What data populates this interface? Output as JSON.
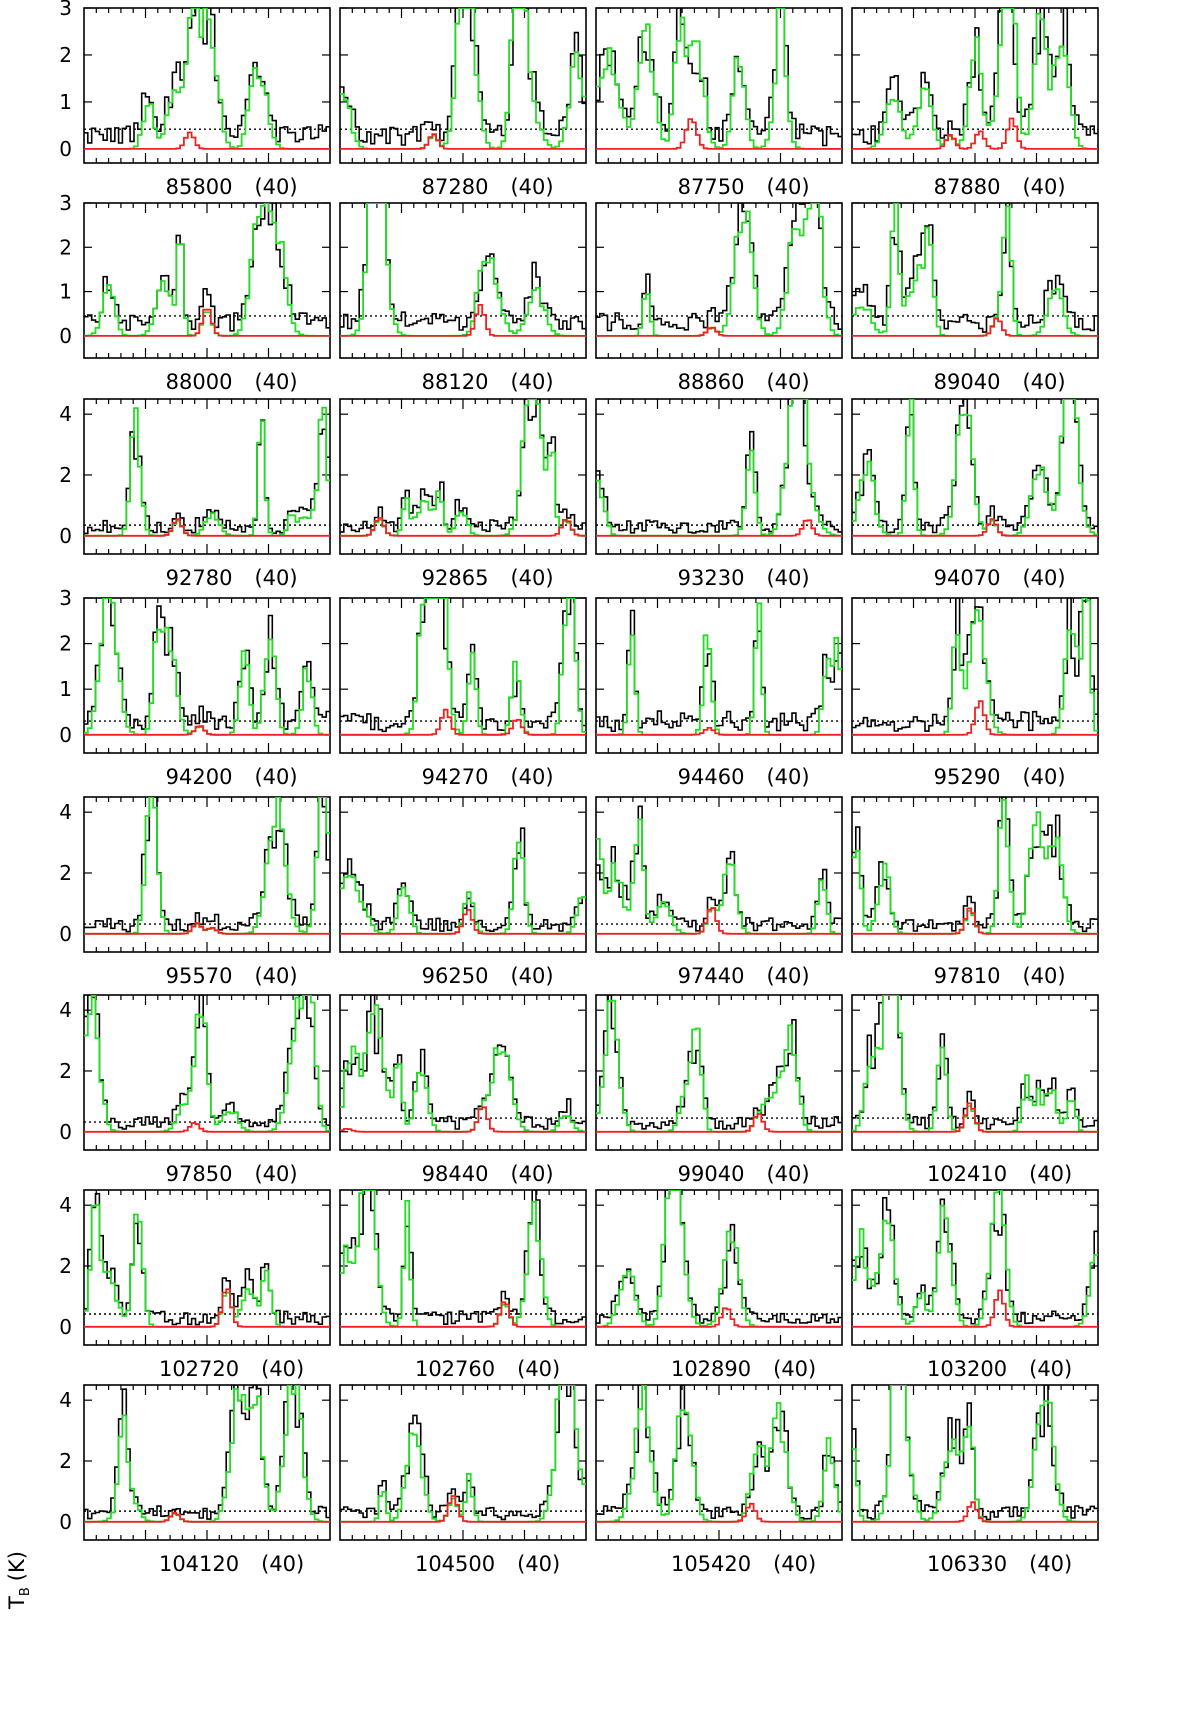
{
  "chart_data": {
    "type": "line",
    "y_axis_label": "T",
    "y_axis_label_subscript": "B",
    "y_axis_unit": "(K)",
    "colors": {
      "observed": "#000000",
      "model_all": "#22dd22",
      "model_molecule": "#ee2222",
      "threshold": "#000000"
    },
    "rows": [
      {
        "ylim": [
          -0.3,
          3.0
        ],
        "yticks": [
          "0",
          "1",
          "2",
          "3"
        ],
        "panels": [
          {
            "freq": "85800",
            "width": "(40)",
            "threshold": 0.42,
            "peaks": [
              {
                "x": 0.43,
                "h": 0.35
              }
            ]
          },
          {
            "freq": "87280",
            "width": "(40)",
            "threshold": 0.42,
            "peaks": [
              {
                "x": 0.38,
                "h": 0.32
              }
            ]
          },
          {
            "freq": "87750",
            "width": "(40)",
            "threshold": 0.42,
            "peaks": [
              {
                "x": 0.4,
                "h": 0.3
              },
              {
                "x": 0.38,
                "h": 0.45
              }
            ]
          },
          {
            "freq": "87880",
            "width": "(40)",
            "threshold": 0.42,
            "peaks": [
              {
                "x": 0.52,
                "h": 0.38
              },
              {
                "x": 0.4,
                "h": 0.3
              },
              {
                "x": 0.65,
                "h": 0.65
              }
            ]
          }
        ]
      },
      {
        "ylim": [
          -0.5,
          3.0
        ],
        "yticks": [
          "0",
          "1",
          "2",
          "3"
        ],
        "panels": [
          {
            "freq": "88000",
            "width": "(40)",
            "threshold": 0.45,
            "peaks": [
              {
                "x": 0.5,
                "h": 0.65
              }
            ]
          },
          {
            "freq": "88120",
            "width": "(40)",
            "threshold": 0.45,
            "peaks": [
              {
                "x": 0.57,
                "h": 0.7
              }
            ]
          },
          {
            "freq": "88860",
            "width": "(40)",
            "threshold": 0.45,
            "peaks": [
              {
                "x": 0.47,
                "h": 0.2
              }
            ]
          },
          {
            "freq": "89040",
            "width": "(40)",
            "threshold": 0.45,
            "peaks": [
              {
                "x": 0.59,
                "h": 0.4
              }
            ]
          }
        ]
      },
      {
        "ylim": [
          -0.6,
          4.5
        ],
        "yticks": [
          "0",
          "2",
          "4"
        ],
        "panels": [
          {
            "freq": "92780",
            "width": "(40)",
            "threshold": 0.35,
            "peaks": [
              {
                "x": 0.38,
                "h": 0.55
              }
            ]
          },
          {
            "freq": "92865",
            "width": "(40)",
            "threshold": 0.35,
            "peaks": [
              {
                "x": 0.16,
                "h": 0.6
              },
              {
                "x": 0.92,
                "h": 0.55
              }
            ]
          },
          {
            "freq": "93230",
            "width": "(40)",
            "threshold": 0.35,
            "peaks": [
              {
                "x": 0.86,
                "h": 0.55
              }
            ]
          },
          {
            "freq": "94070",
            "width": "(40)",
            "threshold": 0.35,
            "peaks": [
              {
                "x": 0.57,
                "h": 0.55
              }
            ]
          }
        ]
      },
      {
        "ylim": [
          -0.4,
          3.0
        ],
        "yticks": [
          "0",
          "1",
          "2",
          "3"
        ],
        "panels": [
          {
            "freq": "94200",
            "width": "(40)",
            "threshold": 0.3,
            "peaks": [
              {
                "x": 0.47,
                "h": 0.2
              }
            ]
          },
          {
            "freq": "94270",
            "width": "(40)",
            "threshold": 0.3,
            "peaks": [
              {
                "x": 0.43,
                "h": 0.55
              },
              {
                "x": 0.72,
                "h": 0.35
              }
            ]
          },
          {
            "freq": "94460",
            "width": "(40)",
            "threshold": 0.3,
            "peaks": [
              {
                "x": 0.46,
                "h": 0.15
              }
            ]
          },
          {
            "freq": "95290",
            "width": "(40)",
            "threshold": 0.3,
            "peaks": [
              {
                "x": 0.52,
                "h": 0.75
              }
            ]
          }
        ]
      },
      {
        "ylim": [
          -0.6,
          4.5
        ],
        "yticks": [
          "0",
          "2",
          "4"
        ],
        "panels": [
          {
            "freq": "95570",
            "width": "(40)",
            "threshold": 0.32,
            "peaks": [
              {
                "x": 0.46,
                "h": 0.35
              },
              {
                "x": 0.52,
                "h": 0.2
              }
            ]
          },
          {
            "freq": "96250",
            "width": "(40)",
            "threshold": 0.32,
            "peaks": [
              {
                "x": 0.52,
                "h": 0.8
              }
            ]
          },
          {
            "freq": "97440",
            "width": "(40)",
            "threshold": 0.32,
            "peaks": [
              {
                "x": 0.47,
                "h": 0.9
              }
            ]
          },
          {
            "freq": "97810",
            "width": "(40)",
            "threshold": 0.32,
            "peaks": [
              {
                "x": 0.48,
                "h": 0.85
              }
            ]
          }
        ]
      },
      {
        "ylim": [
          -0.6,
          4.5
        ],
        "yticks": [
          "0",
          "2",
          "4"
        ],
        "panels": [
          {
            "freq": "97850",
            "width": "(40)",
            "threshold": 0.32,
            "peaks": [
              {
                "x": 0.45,
                "h": 0.3
              }
            ]
          },
          {
            "freq": "98440",
            "width": "(40)",
            "threshold": 0.45,
            "peaks": [
              {
                "x": 0.58,
                "h": 0.85
              },
              {
                "x": 0.03,
                "h": 0.1
              }
            ]
          },
          {
            "freq": "99040",
            "width": "(40)",
            "threshold": 0.45,
            "peaks": [
              {
                "x": 0.66,
                "h": 0.6
              }
            ]
          },
          {
            "freq": "102410",
            "width": "(40)",
            "threshold": 0.45,
            "peaks": [
              {
                "x": 0.48,
                "h": 0.95
              }
            ]
          }
        ]
      },
      {
        "ylim": [
          -0.6,
          4.5
        ],
        "yticks": [
          "0",
          "2",
          "4"
        ],
        "panels": [
          {
            "freq": "102720",
            "width": "(40)",
            "threshold": 0.42,
            "peaks": [
              {
                "x": 0.58,
                "h": 1.3
              }
            ]
          },
          {
            "freq": "102760",
            "width": "(40)",
            "threshold": 0.42,
            "peaks": [
              {
                "x": 0.67,
                "h": 0.85
              }
            ]
          },
          {
            "freq": "102890",
            "width": "(40)",
            "threshold": 0.42,
            "peaks": [
              {
                "x": 0.53,
                "h": 0.65
              }
            ]
          },
          {
            "freq": "103200",
            "width": "(40)",
            "threshold": 0.42,
            "peaks": [
              {
                "x": 0.6,
                "h": 1.2
              }
            ]
          }
        ]
      },
      {
        "ylim": [
          -0.6,
          4.5
        ],
        "yticks": [
          "0",
          "2",
          "4"
        ],
        "panels": [
          {
            "freq": "104120",
            "width": "(40)",
            "threshold": 0.35,
            "peaks": [
              {
                "x": 0.37,
                "h": 0.3
              }
            ]
          },
          {
            "freq": "104500",
            "width": "(40)",
            "threshold": 0.35,
            "peaks": [
              {
                "x": 0.46,
                "h": 0.85
              }
            ]
          },
          {
            "freq": "105420",
            "width": "(40)",
            "threshold": 0.35,
            "peaks": [
              {
                "x": 0.63,
                "h": 0.6
              }
            ]
          },
          {
            "freq": "106330",
            "width": "(40)",
            "threshold": 0.35,
            "peaks": [
              {
                "x": 0.49,
                "h": 0.65
              }
            ]
          }
        ]
      }
    ]
  }
}
